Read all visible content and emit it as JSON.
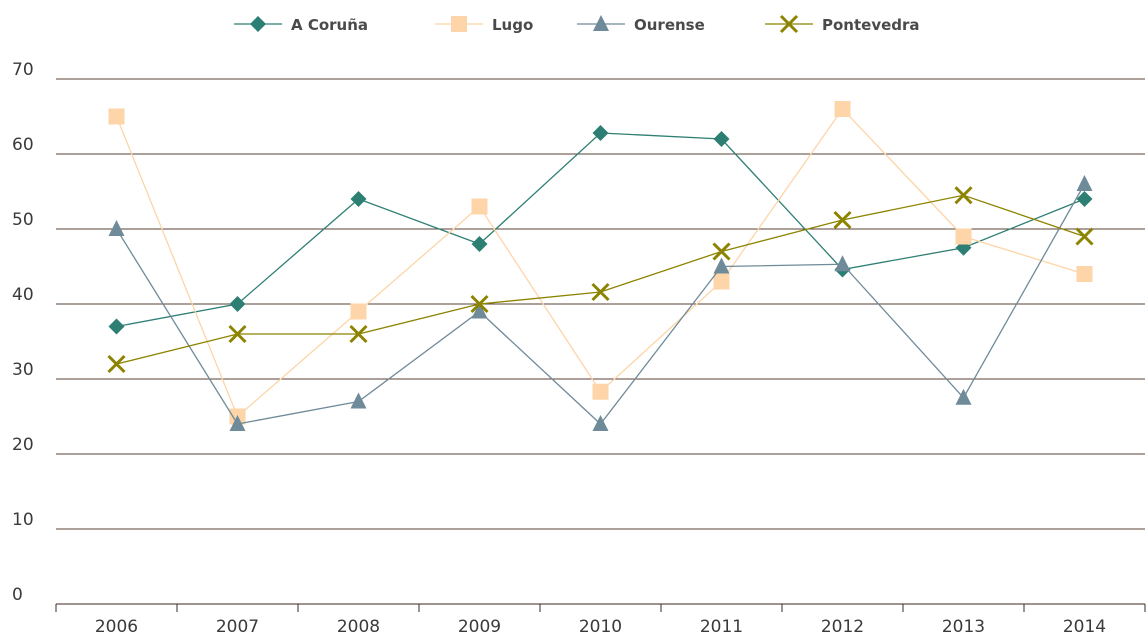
{
  "chart_data": {
    "type": "line",
    "x": [
      "2006",
      "2007",
      "2008",
      "2009",
      "2010",
      "2011",
      "2012",
      "2013",
      "2014"
    ],
    "ylim": [
      0,
      70
    ],
    "yticks": [
      0,
      10,
      20,
      30,
      40,
      50,
      60,
      70
    ],
    "grid": true,
    "legend_position": "top",
    "series": [
      {
        "name": "A Coruña",
        "color": "#2e7f73",
        "marker": "diamond",
        "values": [
          37,
          40,
          54,
          48,
          62.8,
          62,
          44.6,
          47.5,
          54
        ]
      },
      {
        "name": "Lugo",
        "color": "#fdd5a8",
        "marker": "square",
        "values": [
          65,
          25,
          39,
          53,
          28.3,
          43,
          66,
          49,
          44
        ]
      },
      {
        "name": "Ourense",
        "color": "#6f8a99",
        "marker": "triangle",
        "values": [
          50,
          24,
          27,
          39,
          24,
          45,
          45.3,
          27.5,
          56
        ]
      },
      {
        "name": "Pontevedra",
        "color": "#8c8400",
        "marker": "x",
        "values": [
          32,
          36,
          36,
          40,
          41.6,
          47,
          51.2,
          54.5,
          49
        ]
      }
    ]
  }
}
